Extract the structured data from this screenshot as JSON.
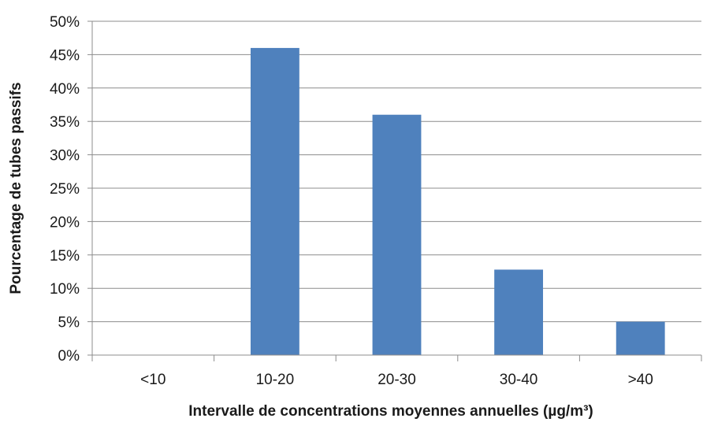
{
  "chart_data": {
    "type": "bar",
    "title": "",
    "xlabel": "Intervalle de concentrations moyennes annuelles (µg/m³)",
    "ylabel": "Pourcentage de tubes passifs",
    "categories": [
      "<10",
      "10-20",
      "20-30",
      "30-40",
      ">40"
    ],
    "values": [
      0,
      46,
      36,
      12.8,
      5
    ],
    "ylim": [
      0,
      50
    ],
    "ytick_step": 5,
    "ytick_suffix": "%",
    "grid": true,
    "legend": false,
    "bar_color": "#4f81bd",
    "grid_color": "#8c8c8c",
    "axis_color": "#8c8c8c"
  }
}
